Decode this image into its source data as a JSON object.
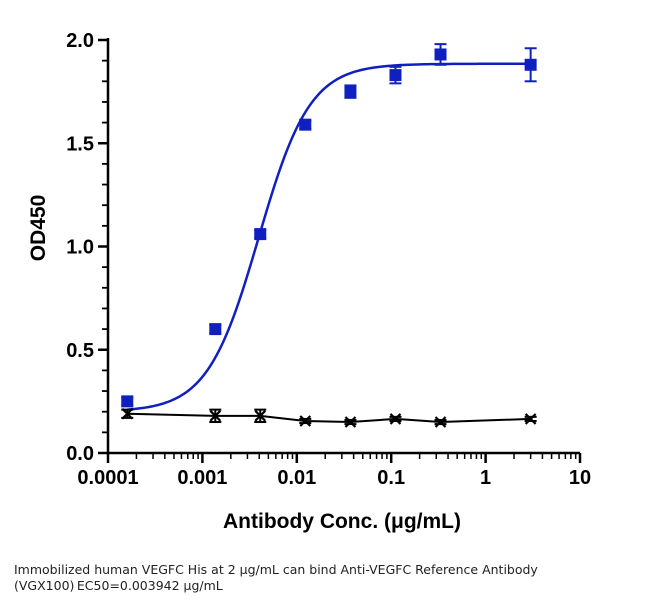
{
  "chart_data": {
    "type": "scatter",
    "xlabel": "Antibody Conc. (μg/mL)",
    "ylabel": "OD450",
    "x_scale": "log",
    "xlim": [
      0.0001,
      10
    ],
    "ylim": [
      0,
      2.0
    ],
    "x_tick_labels": [
      "0.0001",
      "0.001",
      "0.01",
      "0.1",
      "1",
      "10"
    ],
    "y_tick_labels": [
      "0.0",
      "0.5",
      "1.0",
      "1.5",
      "2.0"
    ],
    "series": [
      {
        "color": "#1020c0",
        "marker": "square",
        "x": [
          0.00016,
          0.00137,
          0.0041,
          0.0123,
          0.037,
          0.111,
          0.333,
          3.0
        ],
        "y": [
          0.25,
          0.6,
          1.06,
          1.59,
          1.75,
          1.83,
          1.93,
          1.88
        ],
        "error": [
          0.02,
          0.02,
          0.02,
          0.02,
          0.03,
          0.04,
          0.05,
          0.08
        ],
        "fit": {
          "type": "4PL",
          "bottom": 0.2,
          "top": 1.885,
          "ec50": 0.003942,
          "hill": 1.6
        }
      },
      {
        "color": "#000000",
        "marker": "x",
        "x": [
          0.00016,
          0.00137,
          0.0041,
          0.0123,
          0.037,
          0.111,
          0.333,
          3.0
        ],
        "y": [
          0.19,
          0.18,
          0.18,
          0.155,
          0.15,
          0.165,
          0.15,
          0.165
        ],
        "error": [
          0.02,
          0.03,
          0.03,
          0.01,
          0.01,
          0.01,
          0.01,
          0.01
        ]
      }
    ]
  },
  "caption": {
    "line1": "Immobilized human VEGFC His at 2  μg/mL can bind  Anti-VEGFC Reference Antibody",
    "line2": "(VGX100) EC50=0.003942 μg/mL"
  }
}
